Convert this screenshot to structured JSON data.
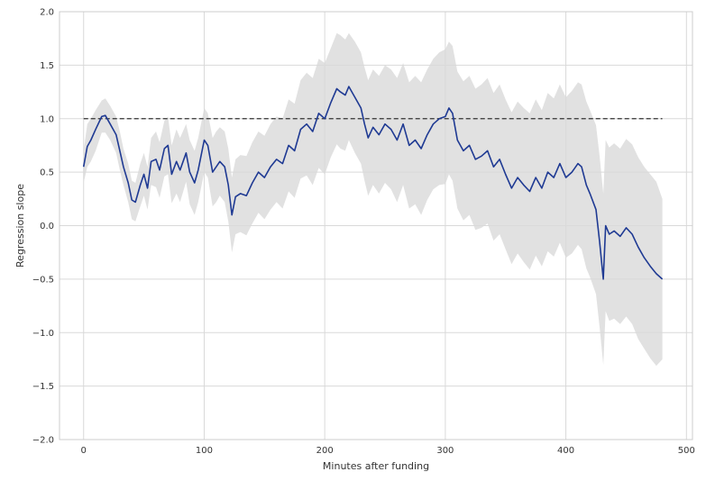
{
  "chart_data": {
    "type": "line",
    "xlabel": "Minutes after funding",
    "ylabel": "Regression slope",
    "xlim": [
      -20,
      505
    ],
    "ylim": [
      -2.0,
      2.0
    ],
    "x_ticks": [
      0,
      100,
      200,
      300,
      400,
      500
    ],
    "y_ticks": [
      -2.0,
      -1.5,
      -1.0,
      -0.5,
      0.0,
      0.5,
      1.0,
      1.5,
      2.0
    ],
    "x_tick_labels": [
      "0",
      "100",
      "200",
      "300",
      "400",
      "500"
    ],
    "y_tick_labels": [
      "−2.0",
      "−1.5",
      "−1.0",
      "−0.5",
      "0.0",
      "0.5",
      "1.0",
      "1.5",
      "2.0"
    ],
    "grid": true,
    "reference_line": {
      "y": 1.0,
      "x_start": 0,
      "x_end": 480,
      "style": "dashed",
      "color": "#333333"
    },
    "series": [
      {
        "color": "#1f3a93",
        "band_color": "#d9d9d9",
        "x": [
          0,
          3,
          6,
          10,
          15,
          18,
          22,
          27,
          30,
          33,
          37,
          40,
          43,
          47,
          50,
          53,
          56,
          60,
          63,
          67,
          70,
          73,
          77,
          80,
          85,
          88,
          92,
          95,
          100,
          103,
          107,
          110,
          113,
          117,
          120,
          123,
          126,
          130,
          135,
          140,
          145,
          150,
          155,
          160,
          165,
          170,
          175,
          180,
          185,
          190,
          195,
          200,
          205,
          210,
          213,
          217,
          220,
          225,
          230,
          233,
          236,
          240,
          245,
          250,
          255,
          260,
          265,
          270,
          275,
          280,
          285,
          290,
          295,
          300,
          303,
          306,
          310,
          315,
          320,
          325,
          330,
          335,
          340,
          345,
          350,
          355,
          360,
          365,
          370,
          375,
          380,
          385,
          390,
          395,
          400,
          405,
          410,
          413,
          417,
          420,
          425,
          428,
          431,
          433,
          436,
          440,
          445,
          450,
          455,
          460,
          465,
          470,
          475,
          480
        ],
        "y": [
          0.55,
          0.74,
          0.8,
          0.9,
          1.02,
          1.03,
          0.95,
          0.85,
          0.7,
          0.55,
          0.4,
          0.24,
          0.22,
          0.38,
          0.48,
          0.35,
          0.6,
          0.62,
          0.52,
          0.72,
          0.75,
          0.48,
          0.6,
          0.52,
          0.68,
          0.5,
          0.4,
          0.52,
          0.8,
          0.75,
          0.5,
          0.55,
          0.6,
          0.55,
          0.38,
          0.1,
          0.27,
          0.3,
          0.28,
          0.4,
          0.5,
          0.45,
          0.55,
          0.62,
          0.58,
          0.75,
          0.7,
          0.9,
          0.95,
          0.88,
          1.05,
          1.0,
          1.15,
          1.28,
          1.25,
          1.22,
          1.3,
          1.2,
          1.1,
          0.95,
          0.82,
          0.92,
          0.85,
          0.95,
          0.9,
          0.8,
          0.95,
          0.75,
          0.8,
          0.72,
          0.85,
          0.95,
          1.0,
          1.02,
          1.1,
          1.05,
          0.8,
          0.7,
          0.75,
          0.62,
          0.65,
          0.7,
          0.55,
          0.62,
          0.48,
          0.35,
          0.45,
          0.38,
          0.32,
          0.45,
          0.35,
          0.5,
          0.45,
          0.58,
          0.45,
          0.5,
          0.58,
          0.55,
          0.38,
          0.3,
          0.15,
          -0.15,
          -0.5,
          0.0,
          -0.08,
          -0.05,
          -0.1,
          -0.02,
          -0.08,
          -0.2,
          -0.3,
          -0.38,
          -0.45,
          -0.5
        ],
        "upper": [
          0.7,
          0.95,
          1.0,
          1.08,
          1.17,
          1.19,
          1.12,
          1.02,
          0.88,
          0.72,
          0.58,
          0.42,
          0.4,
          0.58,
          0.68,
          0.55,
          0.82,
          0.88,
          0.78,
          0.98,
          1.02,
          0.75,
          0.9,
          0.82,
          0.95,
          0.8,
          0.7,
          0.82,
          1.1,
          1.05,
          0.82,
          0.88,
          0.92,
          0.88,
          0.72,
          0.45,
          0.62,
          0.66,
          0.65,
          0.78,
          0.88,
          0.84,
          0.95,
          1.02,
          1.0,
          1.18,
          1.14,
          1.36,
          1.43,
          1.38,
          1.56,
          1.52,
          1.66,
          1.8,
          1.78,
          1.74,
          1.8,
          1.72,
          1.62,
          1.48,
          1.36,
          1.46,
          1.4,
          1.5,
          1.46,
          1.38,
          1.52,
          1.34,
          1.4,
          1.34,
          1.46,
          1.56,
          1.62,
          1.65,
          1.72,
          1.68,
          1.44,
          1.35,
          1.4,
          1.28,
          1.32,
          1.38,
          1.24,
          1.32,
          1.18,
          1.06,
          1.16,
          1.1,
          1.05,
          1.18,
          1.08,
          1.24,
          1.19,
          1.32,
          1.2,
          1.26,
          1.34,
          1.32,
          1.16,
          1.08,
          0.94,
          0.65,
          0.3,
          0.8,
          0.73,
          0.77,
          0.72,
          0.81,
          0.76,
          0.64,
          0.55,
          0.48,
          0.41,
          0.25
        ],
        "lower": [
          0.4,
          0.55,
          0.6,
          0.7,
          0.87,
          0.87,
          0.8,
          0.68,
          0.52,
          0.38,
          0.22,
          0.06,
          0.04,
          0.18,
          0.28,
          0.15,
          0.38,
          0.36,
          0.26,
          0.46,
          0.48,
          0.21,
          0.3,
          0.22,
          0.41,
          0.2,
          0.1,
          0.22,
          0.5,
          0.45,
          0.18,
          0.22,
          0.28,
          0.22,
          0.04,
          -0.25,
          -0.08,
          -0.06,
          -0.09,
          0.02,
          0.12,
          0.06,
          0.15,
          0.22,
          0.16,
          0.32,
          0.26,
          0.44,
          0.47,
          0.38,
          0.54,
          0.48,
          0.64,
          0.76,
          0.72,
          0.7,
          0.8,
          0.68,
          0.58,
          0.42,
          0.28,
          0.38,
          0.3,
          0.4,
          0.34,
          0.22,
          0.38,
          0.16,
          0.2,
          0.1,
          0.24,
          0.34,
          0.38,
          0.39,
          0.48,
          0.42,
          0.16,
          0.05,
          0.1,
          -0.04,
          -0.02,
          0.02,
          -0.14,
          -0.08,
          -0.22,
          -0.36,
          -0.26,
          -0.34,
          -0.41,
          -0.28,
          -0.38,
          -0.24,
          -0.29,
          -0.16,
          -0.3,
          -0.26,
          -0.18,
          -0.22,
          -0.4,
          -0.48,
          -0.64,
          -0.95,
          -1.3,
          -0.8,
          -0.89,
          -0.87,
          -0.92,
          -0.85,
          -0.92,
          -1.06,
          -1.15,
          -1.24,
          -1.31,
          -1.25
        ]
      }
    ]
  }
}
